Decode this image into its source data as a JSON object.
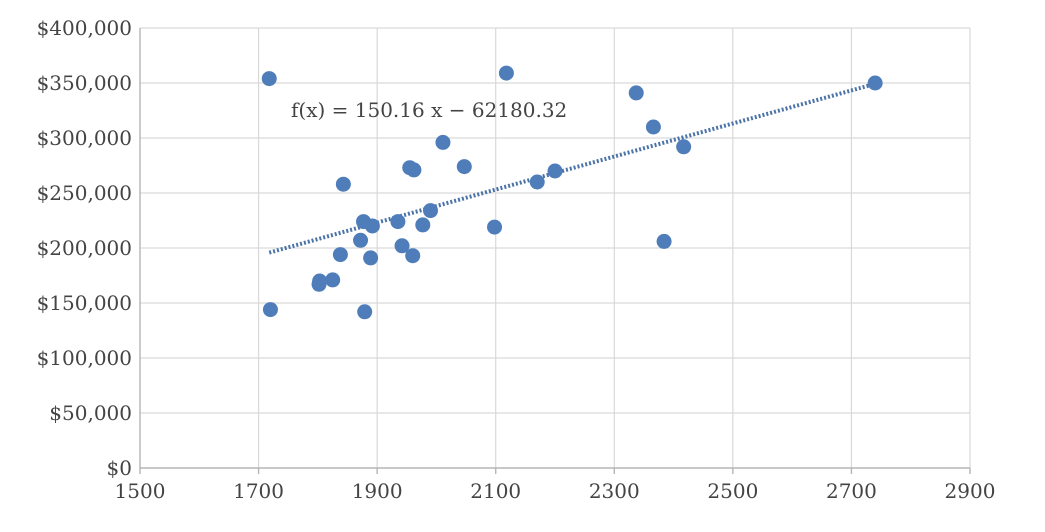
{
  "chart_data": {
    "type": "scatter",
    "title": "",
    "xlabel": "",
    "ylabel": "",
    "xlim": [
      1500,
      2900
    ],
    "ylim": [
      0,
      400000
    ],
    "x_ticks": [
      1500,
      1700,
      1900,
      2100,
      2300,
      2500,
      2700,
      2900
    ],
    "x_tick_labels": [
      "1500",
      "1700",
      "1900",
      "2100",
      "2300",
      "2500",
      "2700",
      "2900"
    ],
    "y_ticks": [
      0,
      50000,
      100000,
      150000,
      200000,
      250000,
      300000,
      350000,
      400000
    ],
    "y_tick_labels": [
      "$0",
      "$50,000",
      "$100,000",
      "$150,000",
      "$200,000",
      "$250,000",
      "$300,000",
      "$350,000",
      "$400,000"
    ],
    "grid": true,
    "legend": "none",
    "marker_color": "#4f7dba",
    "trendline_color": "#4b73a8",
    "series": [
      {
        "points": [
          {
            "x": 1718,
            "y": 354000
          },
          {
            "x": 1720,
            "y": 144000
          },
          {
            "x": 1802,
            "y": 167000
          },
          {
            "x": 1803,
            "y": 170000
          },
          {
            "x": 1825,
            "y": 171000
          },
          {
            "x": 1838,
            "y": 194000
          },
          {
            "x": 1843,
            "y": 258000
          },
          {
            "x": 1872,
            "y": 207000
          },
          {
            "x": 1877,
            "y": 224000
          },
          {
            "x": 1879,
            "y": 142000
          },
          {
            "x": 1889,
            "y": 191000
          },
          {
            "x": 1892,
            "y": 220000
          },
          {
            "x": 1935,
            "y": 224000
          },
          {
            "x": 1942,
            "y": 202000
          },
          {
            "x": 1955,
            "y": 273000
          },
          {
            "x": 1960,
            "y": 193000
          },
          {
            "x": 1962,
            "y": 271000
          },
          {
            "x": 1977,
            "y": 221000
          },
          {
            "x": 1990,
            "y": 234000
          },
          {
            "x": 2011,
            "y": 296000
          },
          {
            "x": 2047,
            "y": 274000
          },
          {
            "x": 2098,
            "y": 219000
          },
          {
            "x": 2118,
            "y": 359000
          },
          {
            "x": 2170,
            "y": 260000
          },
          {
            "x": 2200,
            "y": 270000
          },
          {
            "x": 2337,
            "y": 341000
          },
          {
            "x": 2366,
            "y": 310000
          },
          {
            "x": 2384,
            "y": 206000
          },
          {
            "x": 2417,
            "y": 292000
          },
          {
            "x": 2740,
            "y": 350000
          }
        ]
      }
    ],
    "trendline": {
      "type": "linear",
      "slope": 150.16,
      "intercept": -62180.32,
      "x_range": [
        1718,
        2740
      ],
      "equation_label": "f(x) = 150.16 x − 62180.32"
    }
  }
}
